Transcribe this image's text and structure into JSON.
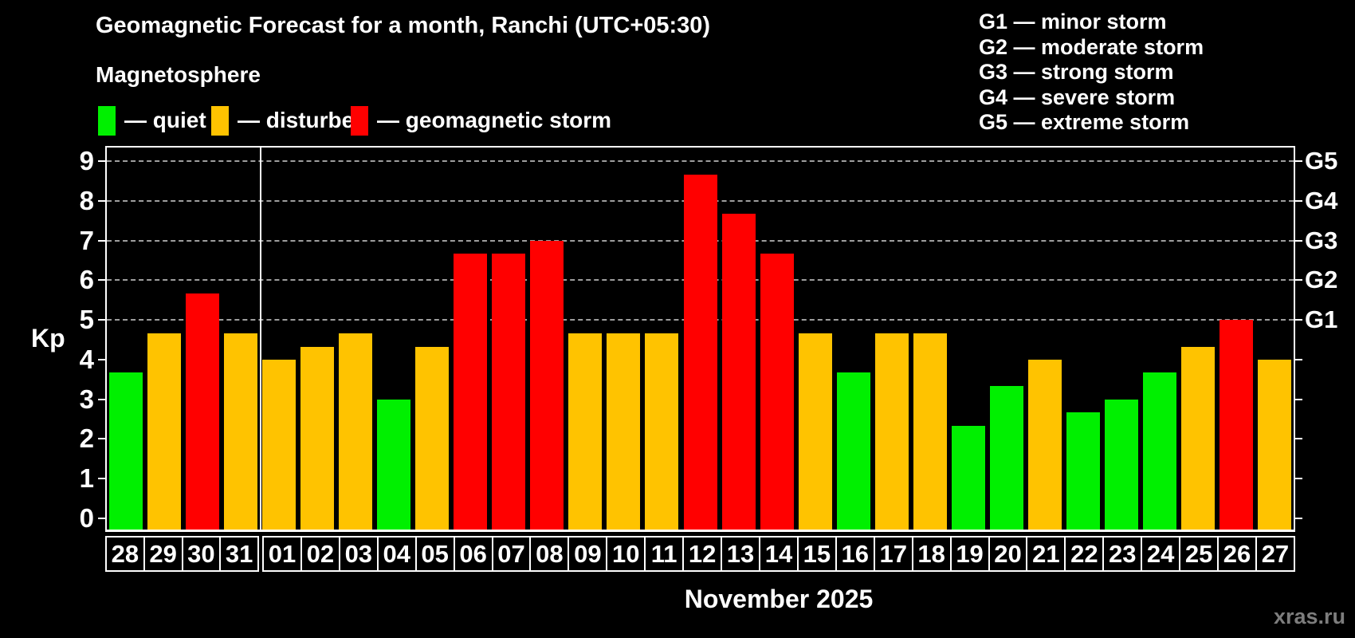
{
  "title": "Geomagnetic Forecast for a month, Ranchi (UTC+05:30)",
  "subtitle": "Magnetosphere",
  "legend": {
    "items": [
      {
        "key": "quiet",
        "label": "— quiet"
      },
      {
        "key": "disturbed",
        "label": "— disturbed"
      },
      {
        "key": "storm",
        "label": "— geomagnetic storm"
      }
    ]
  },
  "g_legend": [
    {
      "label": "G1 — minor storm"
    },
    {
      "label": "G2 — moderate storm"
    },
    {
      "label": "G3 — strong storm"
    },
    {
      "label": "G4 — severe storm"
    },
    {
      "label": "G5 — extreme storm"
    }
  ],
  "colors": {
    "quiet": "#00f000",
    "disturbed": "#ffc300",
    "storm": "#ff0000",
    "grid": "#9e9e9e",
    "axis": "#ffffff",
    "watermark": "#7d7d7d"
  },
  "watermark": "xras.ru",
  "chart_data": {
    "type": "bar",
    "title": "Geomagnetic Forecast for a month, Ranchi (UTC+05:30)",
    "ylabel": "Kp",
    "ylim": [
      0,
      9
    ],
    "y_ticks": [
      0,
      1,
      2,
      3,
      4,
      5,
      6,
      7,
      8,
      9
    ],
    "gridlines_at": [
      5,
      6,
      7,
      8,
      9
    ],
    "grid": "dashed, only at Kp 5-9",
    "right_axis_labels": [
      {
        "label": "G1",
        "kp": 5
      },
      {
        "label": "G2",
        "kp": 6
      },
      {
        "label": "G3",
        "kp": 7
      },
      {
        "label": "G4",
        "kp": 8
      },
      {
        "label": "G5",
        "kp": 9
      }
    ],
    "month_label": "November 2025",
    "month_separator_after_index": 3,
    "categories": [
      "28",
      "29",
      "30",
      "31",
      "01",
      "02",
      "03",
      "04",
      "05",
      "06",
      "07",
      "08",
      "09",
      "10",
      "11",
      "12",
      "13",
      "14",
      "15",
      "16",
      "17",
      "18",
      "19",
      "20",
      "21",
      "22",
      "23",
      "24",
      "25",
      "26",
      "27"
    ],
    "days": [
      {
        "day": "28",
        "kp": 3.67,
        "status": "quiet"
      },
      {
        "day": "29",
        "kp": 4.67,
        "status": "disturbed"
      },
      {
        "day": "30",
        "kp": 5.67,
        "status": "storm"
      },
      {
        "day": "31",
        "kp": 4.67,
        "status": "disturbed"
      },
      {
        "day": "01",
        "kp": 4.0,
        "status": "disturbed"
      },
      {
        "day": "02",
        "kp": 4.33,
        "status": "disturbed"
      },
      {
        "day": "03",
        "kp": 4.67,
        "status": "disturbed"
      },
      {
        "day": "04",
        "kp": 3.0,
        "status": "quiet"
      },
      {
        "day": "05",
        "kp": 4.33,
        "status": "disturbed"
      },
      {
        "day": "06",
        "kp": 6.67,
        "status": "storm"
      },
      {
        "day": "07",
        "kp": 6.67,
        "status": "storm"
      },
      {
        "day": "08",
        "kp": 7.0,
        "status": "storm"
      },
      {
        "day": "09",
        "kp": 4.67,
        "status": "disturbed"
      },
      {
        "day": "10",
        "kp": 4.67,
        "status": "disturbed"
      },
      {
        "day": "11",
        "kp": 4.67,
        "status": "disturbed"
      },
      {
        "day": "12",
        "kp": 8.67,
        "status": "storm"
      },
      {
        "day": "13",
        "kp": 7.67,
        "status": "storm"
      },
      {
        "day": "14",
        "kp": 6.67,
        "status": "storm"
      },
      {
        "day": "15",
        "kp": 4.67,
        "status": "disturbed"
      },
      {
        "day": "16",
        "kp": 3.67,
        "status": "quiet"
      },
      {
        "day": "17",
        "kp": 4.67,
        "status": "disturbed"
      },
      {
        "day": "18",
        "kp": 4.67,
        "status": "disturbed"
      },
      {
        "day": "19",
        "kp": 2.33,
        "status": "quiet"
      },
      {
        "day": "20",
        "kp": 3.33,
        "status": "quiet"
      },
      {
        "day": "21",
        "kp": 4.0,
        "status": "disturbed"
      },
      {
        "day": "22",
        "kp": 2.67,
        "status": "quiet"
      },
      {
        "day": "23",
        "kp": 3.0,
        "status": "quiet"
      },
      {
        "day": "24",
        "kp": 3.67,
        "status": "quiet"
      },
      {
        "day": "25",
        "kp": 4.33,
        "status": "disturbed"
      },
      {
        "day": "26",
        "kp": 5.0,
        "status": "storm"
      },
      {
        "day": "27",
        "kp": 4.0,
        "status": "disturbed"
      }
    ]
  }
}
